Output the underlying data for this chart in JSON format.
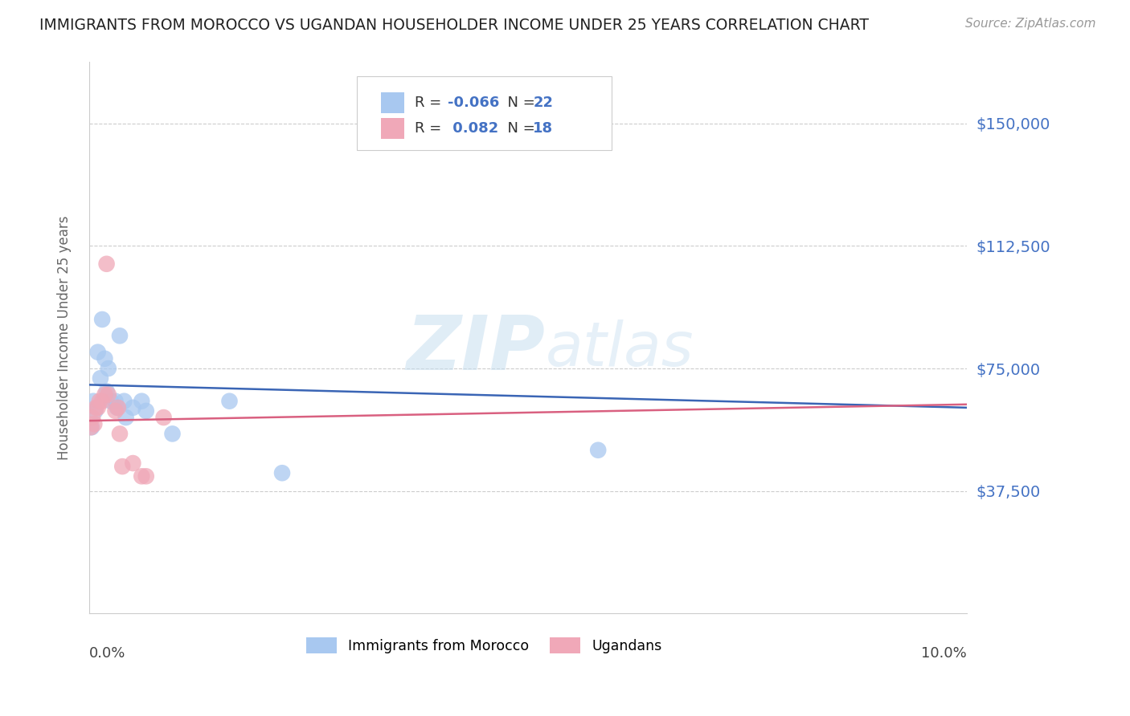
{
  "title": "IMMIGRANTS FROM MOROCCO VS UGANDAN HOUSEHOLDER INCOME UNDER 25 YEARS CORRELATION CHART",
  "source": "Source: ZipAtlas.com",
  "ylabel": "Householder Income Under 25 years",
  "ytick_labels": [
    "$150,000",
    "$112,500",
    "$75,000",
    "$37,500"
  ],
  "ytick_values": [
    150000,
    112500,
    75000,
    37500
  ],
  "ylim": [
    0,
    168750
  ],
  "xlim": [
    0.0,
    0.1
  ],
  "morocco_color": "#a8c8f0",
  "ugandan_color": "#f0a8b8",
  "morocco_line_color": "#3a65b5",
  "ugandan_line_color": "#d96080",
  "watermark_zip": "ZIP",
  "watermark_atlas": "atlas",
  "background_color": "#ffffff",
  "grid_color": "#cccccc",
  "morocco_x": [
    0.0003,
    0.0005,
    0.0007,
    0.001,
    0.0013,
    0.0015,
    0.0018,
    0.002,
    0.0022,
    0.0025,
    0.003,
    0.0032,
    0.0035,
    0.004,
    0.0042,
    0.005,
    0.006,
    0.0065,
    0.0095,
    0.016,
    0.022,
    0.058
  ],
  "morocco_y": [
    57000,
    65000,
    62000,
    80000,
    72000,
    90000,
    78000,
    68000,
    75000,
    65000,
    65000,
    63000,
    85000,
    65000,
    60000,
    63000,
    65000,
    62000,
    55000,
    65000,
    43000,
    50000
  ],
  "ugandan_x": [
    0.0002,
    0.0004,
    0.0006,
    0.0008,
    0.001,
    0.0012,
    0.0015,
    0.0018,
    0.002,
    0.0022,
    0.003,
    0.0033,
    0.0035,
    0.0038,
    0.005,
    0.006,
    0.0065,
    0.0085
  ],
  "ugandan_y": [
    57000,
    60000,
    58000,
    63000,
    63000,
    65000,
    65000,
    67000,
    107000,
    67000,
    62000,
    63000,
    55000,
    45000,
    46000,
    42000,
    42000,
    60000
  ],
  "mor_line_y0": 70000,
  "mor_line_y1": 63000,
  "uga_line_y0": 59000,
  "uga_line_y1": 64000
}
